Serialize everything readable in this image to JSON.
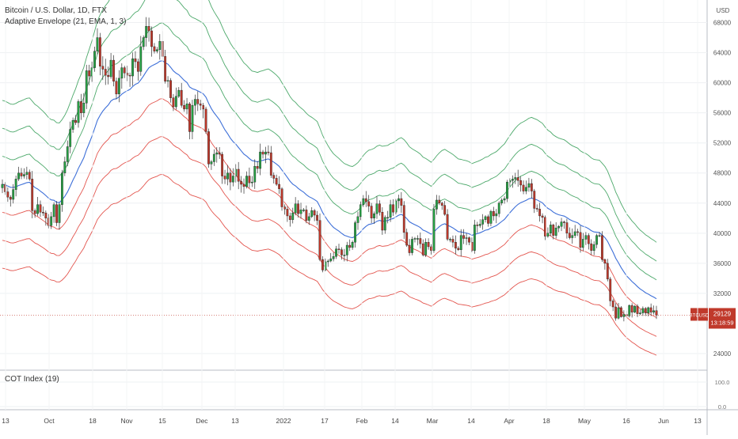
{
  "chart_data": {
    "type": "candlestick",
    "title": "Bitcoin / U.S. Dollar, 1D, FTX",
    "indicator": "Adaptive Envelope (21, EMA, 1, 3)",
    "sub_indicator": "COT Index (19)",
    "currency": "USD",
    "symbol": "BTCUSD",
    "last_price": "29129",
    "countdown": "13:18:59",
    "y_ticks": [
      68000,
      64000,
      60000,
      56000,
      52000,
      48000,
      44000,
      40000,
      36000,
      32000,
      24000
    ],
    "ylim": [
      22000,
      71000
    ],
    "sub_ticks": [
      "100.0",
      "0.0"
    ],
    "x_ticks": [
      "13",
      "Oct",
      "18",
      "Nov",
      "15",
      "Dec",
      "13",
      "2022",
      "17",
      "Feb",
      "14",
      "Mar",
      "14",
      "Apr",
      "18",
      "May",
      "16",
      "Jun",
      "13"
    ],
    "dates_note": "Daily candles from 2021-09-09 to 2022-05-25",
    "closes": [
      46500,
      45500,
      44800,
      44500,
      45800,
      47200,
      48000,
      47600,
      47800,
      48100,
      47200,
      43000,
      42600,
      43800,
      42800,
      42700,
      42000,
      41000,
      42200,
      43800,
      41400,
      43800,
      48000,
      49500,
      51500,
      53800,
      55000,
      54700,
      57500,
      56000,
      57300,
      61600,
      60900,
      62000,
      64200,
      66000,
      62200,
      61800,
      61000,
      60800,
      63000,
      60200,
      58500,
      60600,
      62000,
      61300,
      61000,
      60900,
      63200,
      62800,
      61500,
      64800,
      66000,
      67500,
      66900,
      64800,
      64200,
      64400,
      65500,
      63500,
      60200,
      60300,
      58000,
      56800,
      58200,
      59000,
      57000,
      56500,
      57200,
      53500,
      57000,
      57800,
      57200,
      57000,
      56500,
      53500,
      49200,
      49500,
      50500,
      50700,
      50500,
      47600,
      47200,
      48000,
      46800,
      47600,
      48500,
      46900,
      46500,
      46200,
      47600,
      46700,
      46800,
      48900,
      48600,
      50800,
      50500,
      50800,
      50700,
      47700,
      47300,
      46500,
      45900,
      43500,
      43200,
      42300,
      41800,
      42700,
      43900,
      42600,
      43100,
      43100,
      41700,
      42200,
      43000,
      42400,
      41700,
      36500,
      35100,
      36200,
      36300,
      36600,
      36900,
      37900,
      37800,
      37100,
      37100,
      38400,
      38100,
      38800,
      41400,
      42200,
      43800,
      44600,
      44200,
      43600,
      42000,
      42600,
      43900,
      42800,
      40400,
      42100,
      42100,
      43800,
      42800,
      44300,
      44600,
      43700,
      40100,
      38400,
      37400,
      39200,
      39300,
      39300,
      38600,
      37100,
      38800,
      38200,
      37700,
      43200,
      44400,
      44000,
      43700,
      42500,
      39200,
      39200,
      38800,
      38000,
      37800,
      39700,
      39300,
      39400,
      38800,
      37700,
      41100,
      41000,
      41200,
      41800,
      42200,
      41300,
      42900,
      42300,
      42600,
      44000,
      44400,
      44600,
      46800,
      47000,
      47200,
      47400,
      47000,
      46400,
      45600,
      46100,
      46600,
      45600,
      43300,
      43200,
      42300,
      42100,
      39600,
      40000,
      41100,
      39700,
      40700,
      40900,
      41500,
      41400,
      40000,
      39400,
      39700,
      40200,
      40100,
      38100,
      39200,
      39700,
      38600,
      37700,
      38500,
      39700,
      39700,
      36500,
      36000,
      33900,
      31000,
      30200,
      28700,
      30100,
      28900,
      29200,
      29000,
      30400,
      29500,
      30300,
      29300,
      29400,
      30000,
      29400,
      30100,
      29500,
      29700,
      29100
    ],
    "series": [
      {
        "name": "Basis",
        "color": "#3d6fd8"
      },
      {
        "name": "Upper bands",
        "color": "#3aa05b"
      },
      {
        "name": "Lower bands",
        "color": "#e0423b"
      }
    ],
    "up_color": "#26a244",
    "down_color": "#c0392b",
    "grid": true
  }
}
